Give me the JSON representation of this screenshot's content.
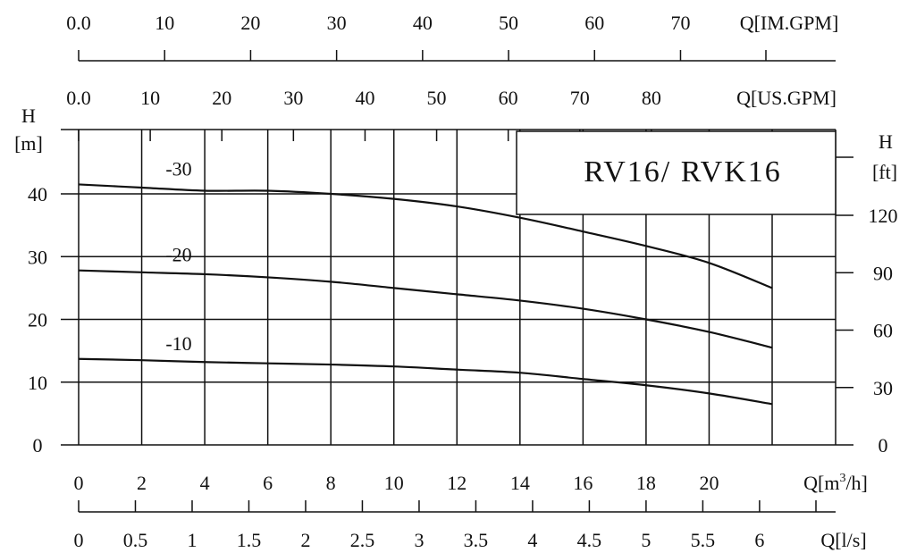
{
  "chart_data": {
    "type": "line",
    "title": "RV16/ RVK16",
    "x": [
      0,
      2,
      4,
      6,
      8,
      10,
      12,
      14,
      16,
      18,
      20,
      22
    ],
    "xlabel": "Q[m³/h]",
    "xlabel_parts": {
      "main": "Q[m",
      "sup": "3",
      "rest": "/h]"
    },
    "xlim": [
      0,
      22
    ],
    "x_ticks": [
      "0",
      "2",
      "4",
      "6",
      "8",
      "10",
      "12",
      "14",
      "16",
      "18",
      "20"
    ],
    "ylabel": "H\n[m]",
    "ylabel_lines": [
      "H",
      "[m]"
    ],
    "ylim": [
      0,
      50
    ],
    "y_ticks": [
      "0",
      "10",
      "20",
      "30",
      "40"
    ],
    "y2label_lines": [
      "H",
      "[ft]"
    ],
    "y2_ticks": [
      "0",
      "30",
      "60",
      "90",
      "120"
    ],
    "ls_axis": {
      "label": "Q[l/s]",
      "ticks": [
        "0",
        "0.5",
        "1",
        "1.5",
        "2",
        "2.5",
        "3",
        "3.5",
        "4",
        "4.5",
        "5",
        "5.5",
        "6"
      ]
    },
    "usgpm_axis": {
      "label": "Q[US.GPM]",
      "ticks": [
        "0.0",
        "10",
        "20",
        "30",
        "40",
        "50",
        "60",
        "70",
        "80"
      ]
    },
    "imgpm_axis": {
      "label": "Q[IM.GPM]",
      "ticks": [
        "0.0",
        "10",
        "20",
        "30",
        "40",
        "50",
        "60",
        "70"
      ]
    },
    "series": [
      {
        "name": "-30",
        "values": [
          41.5,
          41.0,
          40.5,
          40.5,
          40.0,
          39.2,
          38.0,
          36.2,
          34.0,
          31.7,
          29.0,
          25.0
        ]
      },
      {
        "name": "-20",
        "values": [
          27.8,
          27.5,
          27.2,
          26.7,
          26.0,
          25.0,
          24.0,
          23.0,
          21.7,
          20.0,
          18.0,
          15.5
        ]
      },
      {
        "name": "-10",
        "values": [
          13.7,
          13.5,
          13.2,
          13.0,
          12.8,
          12.5,
          12.0,
          11.5,
          10.5,
          9.5,
          8.2,
          6.5
        ]
      }
    ],
    "grid": true,
    "legend": "curve-labels"
  }
}
